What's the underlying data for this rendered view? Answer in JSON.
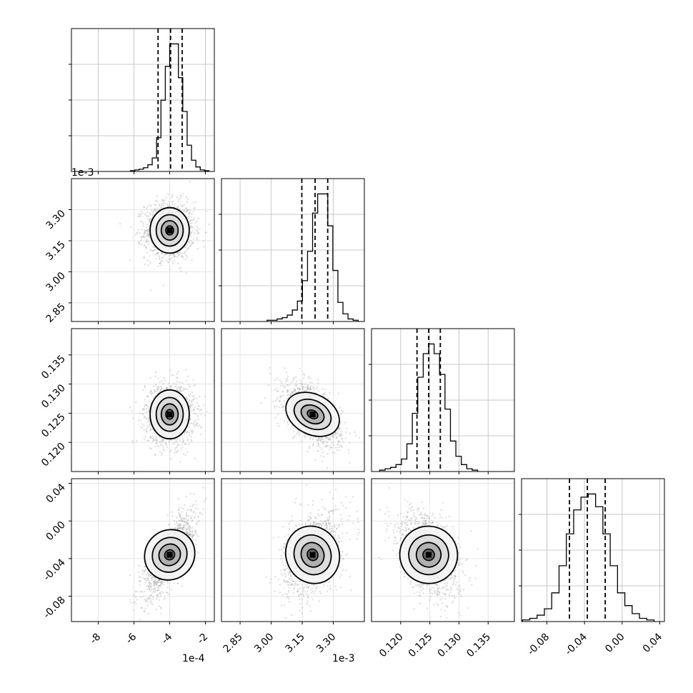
{
  "chart_data": {
    "type": "corner",
    "parameters": [
      {
        "range": [
          -0.00095,
          -0.00015
        ],
        "offset_label": "1e-4",
        "tick_labels": [
          "-8",
          "-6",
          "-4",
          "-2"
        ],
        "ticks": [
          -0.0008,
          -0.0006,
          -0.0004,
          -0.0002
        ],
        "quantiles": [
          -0.000465,
          -0.000395,
          -0.00033
        ]
      },
      {
        "range": [
          0.00276,
          0.00345
        ],
        "offset_label": "1e-3",
        "tick_labels": [
          "2.85",
          "3.00",
          "3.15",
          "3.30"
        ],
        "ticks": [
          0.00285,
          0.003,
          0.00315,
          0.0033
        ],
        "quantiles": [
          0.003148,
          0.003212,
          0.003273
        ]
      },
      {
        "range": [
          0.115,
          0.1395
        ],
        "offset_label": "",
        "tick_labels": [
          "0.120",
          "0.125",
          "0.130",
          "0.135"
        ],
        "ticks": [
          0.12,
          0.125,
          0.13,
          0.135
        ],
        "quantiles": [
          0.1228,
          0.1248,
          0.1268
        ]
      },
      {
        "range": [
          -0.107,
          0.045
        ],
        "offset_label": "",
        "tick_labels": [
          "-0.08",
          "-0.04",
          "0.00",
          "0.04"
        ],
        "ticks": [
          -0.08,
          -0.04,
          0.0,
          0.04
        ],
        "quantiles": [
          -0.056,
          -0.037,
          -0.018
        ]
      }
    ],
    "histograms": [
      [
        1,
        2,
        3,
        5,
        9,
        18,
        45,
        95,
        140,
        170,
        170,
        125,
        80,
        35,
        15,
        6,
        2,
        1
      ],
      [
        1,
        1,
        2,
        3,
        5,
        9,
        16,
        32,
        55,
        85,
        100,
        100,
        75,
        40,
        15,
        6,
        2,
        1
      ],
      [
        1,
        2,
        3,
        5,
        9,
        20,
        42,
        68,
        85,
        92,
        85,
        70,
        45,
        22,
        11,
        5,
        2,
        1
      ],
      [
        1,
        2,
        4,
        8,
        18,
        35,
        55,
        70,
        78,
        80,
        72,
        55,
        35,
        18,
        10,
        5,
        2,
        1
      ]
    ],
    "y_offset_labels": [
      "1e-3"
    ],
    "means": [
      -0.0004,
      0.0032,
      0.1248,
      -0.036
    ],
    "stds": [
      5.5e-05,
      5.5e-05,
      0.0021,
      0.0175
    ],
    "correlations": {
      "0-1": 0.0,
      "0-2": 0.0,
      "1-2": -0.55,
      "0-3": 0.75,
      "1-3": 0.35,
      "2-3": -0.4
    },
    "grid": true,
    "xlabels": [
      "",
      "",
      "",
      ""
    ],
    "ylabels": [
      "",
      "",
      "",
      ""
    ]
  }
}
